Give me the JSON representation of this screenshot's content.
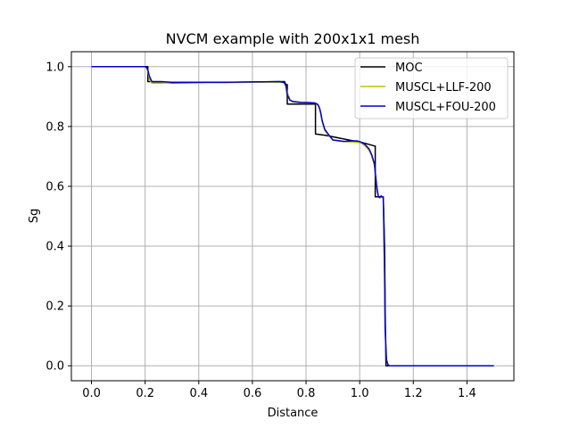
{
  "chart_data": {
    "type": "line",
    "title": "NVCM example with 200x1x1 mesh",
    "xlabel": "Distance",
    "ylabel": "Sg",
    "xlim": [
      -0.075,
      1.575
    ],
    "ylim": [
      -0.05,
      1.05
    ],
    "xticks": [
      0.0,
      0.2,
      0.4,
      0.6,
      0.8,
      1.0,
      1.2,
      1.4
    ],
    "xtick_labels": [
      "0.0",
      "0.2",
      "0.4",
      "0.6",
      "0.8",
      "1.0",
      "1.2",
      "1.4"
    ],
    "yticks": [
      0.0,
      0.2,
      0.4,
      0.6,
      0.8,
      1.0
    ],
    "ytick_labels": [
      "0.0",
      "0.2",
      "0.4",
      "0.6",
      "0.8",
      "1.0"
    ],
    "grid": true,
    "legend_position": "top-right",
    "series": [
      {
        "name": "MOC",
        "color": "#000000",
        "x": [
          0.0,
          0.21,
          0.21,
          0.22,
          0.3,
          0.72,
          0.725,
          0.73,
          0.73,
          0.835,
          0.835,
          0.875,
          0.96,
          1.015,
          1.055,
          1.058,
          1.058,
          1.085,
          1.088,
          1.093,
          1.095,
          1.098,
          1.098,
          1.5
        ],
        "y": [
          1.0,
          1.0,
          0.95,
          0.95,
          0.945,
          0.95,
          0.94,
          0.94,
          0.875,
          0.875,
          0.775,
          0.77,
          0.755,
          0.745,
          0.735,
          0.735,
          0.565,
          0.565,
          0.565,
          0.4,
          0.2,
          0.0,
          0.0,
          0.0
        ]
      },
      {
        "name": "MUSCL+LLF-200",
        "color": "#bfbf00",
        "x": [
          0.0,
          0.2,
          0.205,
          0.21,
          0.215,
          0.225,
          0.26,
          0.3,
          0.4,
          0.5,
          0.6,
          0.7,
          0.715,
          0.72,
          0.725,
          0.73,
          0.74,
          0.75,
          0.78,
          0.81,
          0.83,
          0.84,
          0.845,
          0.85,
          0.855,
          0.86,
          0.87,
          0.885,
          0.9,
          0.94,
          0.97,
          0.99,
          1.005,
          1.02,
          1.035,
          1.045,
          1.055,
          1.06,
          1.065,
          1.07,
          1.075,
          1.08,
          1.085,
          1.088,
          1.09,
          1.093,
          1.095,
          1.1,
          1.105,
          1.11,
          1.2,
          1.5
        ],
        "y": [
          1.0,
          1.0,
          0.995,
          0.985,
          0.96,
          0.945,
          0.945,
          0.946,
          0.946,
          0.947,
          0.948,
          0.948,
          0.947,
          0.945,
          0.935,
          0.915,
          0.89,
          0.882,
          0.879,
          0.879,
          0.879,
          0.875,
          0.87,
          0.86,
          0.84,
          0.815,
          0.785,
          0.77,
          0.755,
          0.75,
          0.748,
          0.747,
          0.745,
          0.735,
          0.72,
          0.7,
          0.67,
          0.625,
          0.585,
          0.565,
          0.562,
          0.567,
          0.565,
          0.56,
          0.47,
          0.3,
          0.12,
          0.02,
          0.005,
          0.0,
          0.0,
          0.0
        ]
      },
      {
        "name": "MUSCL+FOU-200",
        "color": "#0000cc",
        "x": [
          0.0,
          0.2,
          0.205,
          0.21,
          0.215,
          0.225,
          0.26,
          0.3,
          0.4,
          0.5,
          0.6,
          0.7,
          0.715,
          0.72,
          0.725,
          0.73,
          0.74,
          0.75,
          0.78,
          0.81,
          0.83,
          0.84,
          0.845,
          0.85,
          0.855,
          0.86,
          0.87,
          0.885,
          0.9,
          0.94,
          0.97,
          0.99,
          1.005,
          1.02,
          1.035,
          1.045,
          1.055,
          1.06,
          1.065,
          1.07,
          1.075,
          1.08,
          1.085,
          1.088,
          1.09,
          1.093,
          1.095,
          1.1,
          1.105,
          1.11,
          1.2,
          1.5
        ],
        "y": [
          1.0,
          1.0,
          0.998,
          0.99,
          0.97,
          0.95,
          0.95,
          0.948,
          0.948,
          0.948,
          0.949,
          0.95,
          0.948,
          0.945,
          0.935,
          0.905,
          0.888,
          0.884,
          0.881,
          0.88,
          0.879,
          0.876,
          0.872,
          0.862,
          0.845,
          0.82,
          0.79,
          0.772,
          0.755,
          0.75,
          0.752,
          0.752,
          0.748,
          0.74,
          0.725,
          0.705,
          0.675,
          0.63,
          0.59,
          0.565,
          0.562,
          0.568,
          0.565,
          0.56,
          0.47,
          0.3,
          0.12,
          0.02,
          0.005,
          0.0,
          0.0,
          0.0
        ]
      }
    ]
  }
}
